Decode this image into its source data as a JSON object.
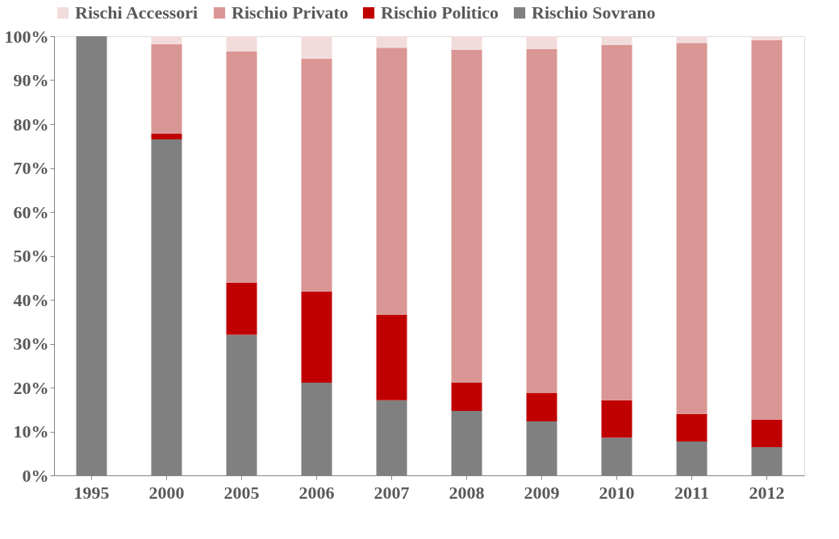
{
  "chart_data": {
    "type": "bar",
    "stacked": true,
    "legend": "top",
    "grid": false,
    "categories": [
      "1995",
      "2000",
      "2005",
      "2006",
      "2007",
      "2008",
      "2009",
      "2010",
      "2011",
      "2012"
    ],
    "ylim": [
      0,
      100
    ],
    "yticks": [
      {
        "value": 0,
        "label": "0%"
      },
      {
        "value": 10,
        "label": "10%"
      },
      {
        "value": 20,
        "label": "20%"
      },
      {
        "value": 30,
        "label": "30%"
      },
      {
        "value": 40,
        "label": "40%"
      },
      {
        "value": 50,
        "label": "50%"
      },
      {
        "value": 60,
        "label": "60%"
      },
      {
        "value": 70,
        "label": "70%"
      },
      {
        "value": 80,
        "label": "80%"
      },
      {
        "value": 90,
        "label": "90%"
      },
      {
        "value": 100,
        "label": "100%"
      }
    ],
    "series": [
      {
        "name": "Rischio Sovrano",
        "color": "#808080",
        "values": [
          100,
          76.5,
          32.0,
          21.1,
          17.1,
          14.7,
          12.3,
          8.6,
          7.7,
          6.4
        ]
      },
      {
        "name": "Rischio Politico",
        "color": "#c00000",
        "values": [
          0,
          1.3,
          11.9,
          20.8,
          19.5,
          6.4,
          6.5,
          8.5,
          6.3,
          6.3
        ]
      },
      {
        "name": "Rischio Privato",
        "color": "#d99694",
        "values": [
          0,
          20.4,
          52.6,
          53.0,
          60.8,
          75.8,
          78.3,
          80.9,
          84.5,
          86.4
        ]
      },
      {
        "name": "Rischi Accessori",
        "color": "#f2dcdb",
        "values": [
          0,
          1.8,
          3.5,
          5.1,
          2.6,
          3.1,
          2.9,
          2.0,
          1.5,
          0.9
        ]
      }
    ]
  }
}
